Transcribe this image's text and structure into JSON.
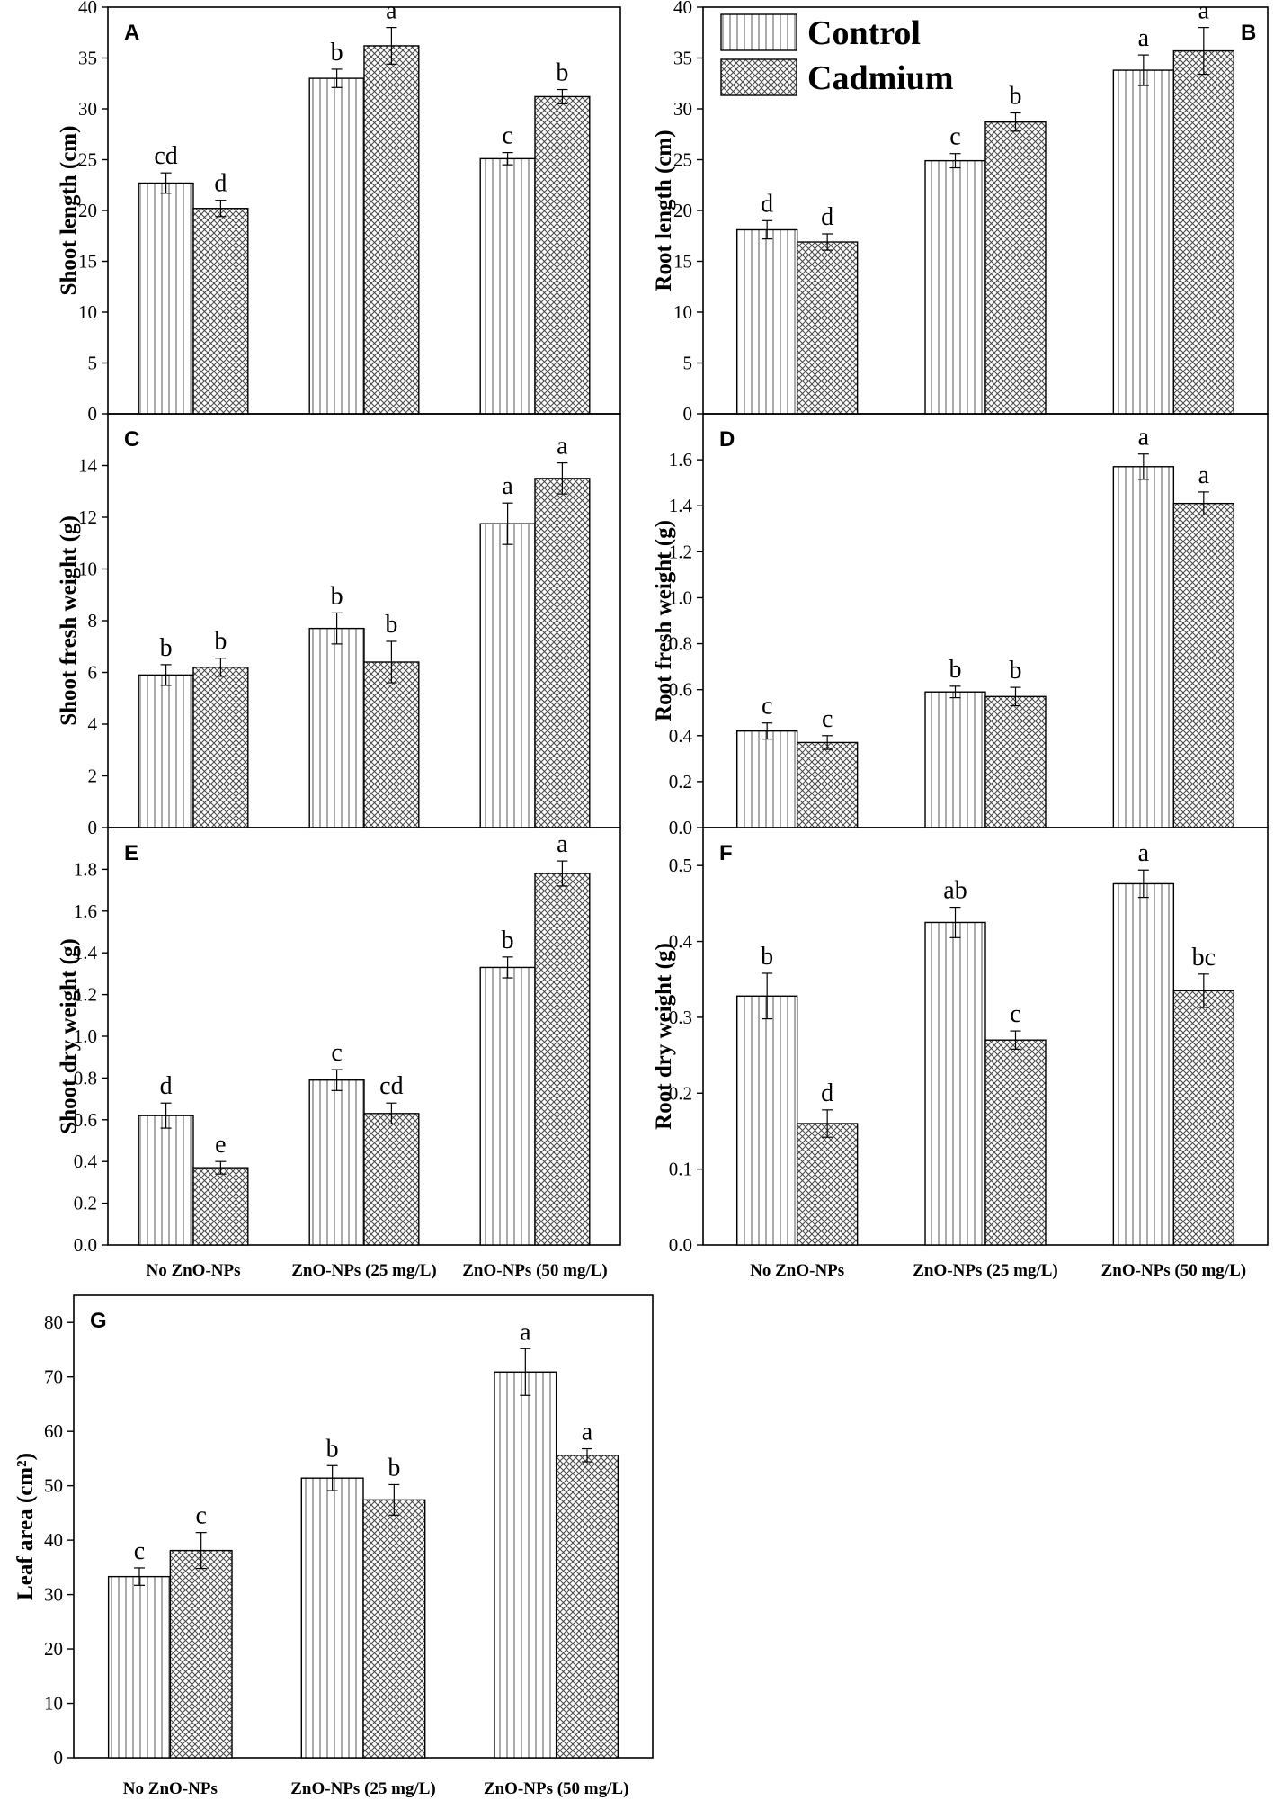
{
  "legend": {
    "series": [
      {
        "name": "Control",
        "pattern": "vertical-lines"
      },
      {
        "name": "Cadmium",
        "pattern": "crosshatch"
      }
    ]
  },
  "categories": [
    "No ZnO-NPs",
    "ZnO-NPs (25 mg/L)",
    "ZnO-NPs (50 mg/L)"
  ],
  "colors": {
    "bar_fill": "#ffffff",
    "line": "#000000",
    "pattern": "#555555"
  },
  "chart_data": [
    {
      "id": "A",
      "type": "bar",
      "letter": "A",
      "ylabel": "Shoot length (cm)",
      "ylim": [
        0,
        40
      ],
      "yticks": [
        "0",
        "5",
        "10",
        "15",
        "20",
        "25",
        "30",
        "35",
        "40"
      ],
      "categories": [
        "No ZnO-NPs",
        "ZnO-NPs (25 mg/L)",
        "ZnO-NPs (50 mg/L)"
      ],
      "series": [
        {
          "name": "Control",
          "values": [
            22.7,
            33.0,
            25.1
          ],
          "errors": [
            1.0,
            0.9,
            0.6
          ],
          "labels": [
            "cd",
            "b",
            "c"
          ]
        },
        {
          "name": "Cadmium",
          "values": [
            20.2,
            36.2,
            31.2
          ],
          "errors": [
            0.8,
            1.8,
            0.7
          ],
          "labels": [
            "d",
            "a",
            "b"
          ]
        }
      ]
    },
    {
      "id": "B",
      "type": "bar",
      "letter": "B",
      "ylabel": "Root length (cm)",
      "ylim": [
        0,
        40
      ],
      "yticks": [
        "0",
        "5",
        "10",
        "15",
        "20",
        "25",
        "30",
        "35",
        "40"
      ],
      "categories": [
        "No ZnO-NPs",
        "ZnO-NPs (25 mg/L)",
        "ZnO-NPs (50 mg/L)"
      ],
      "series": [
        {
          "name": "Control",
          "values": [
            18.1,
            24.9,
            33.8
          ],
          "errors": [
            0.9,
            0.7,
            1.5
          ],
          "labels": [
            "d",
            "c",
            "a"
          ]
        },
        {
          "name": "Cadmium",
          "values": [
            16.9,
            28.7,
            35.7
          ],
          "errors": [
            0.8,
            0.9,
            2.3
          ],
          "labels": [
            "d",
            "b",
            "a"
          ]
        }
      ]
    },
    {
      "id": "C",
      "type": "bar",
      "letter": "C",
      "ylabel": "Shoot fresh weight (g)",
      "ylim": [
        0,
        16
      ],
      "yticks": [
        "0",
        "2",
        "4",
        "6",
        "8",
        "10",
        "12",
        "14"
      ],
      "categories": [
        "No ZnO-NPs",
        "ZnO-NPs (25 mg/L)",
        "ZnO-NPs (50 mg/L)"
      ],
      "series": [
        {
          "name": "Control",
          "values": [
            5.9,
            7.7,
            11.75
          ],
          "errors": [
            0.4,
            0.6,
            0.8
          ],
          "labels": [
            "b",
            "b",
            "a"
          ]
        },
        {
          "name": "Cadmium",
          "values": [
            6.2,
            6.4,
            13.5
          ],
          "errors": [
            0.35,
            0.8,
            0.6
          ],
          "labels": [
            "b",
            "b",
            "a"
          ]
        }
      ]
    },
    {
      "id": "D",
      "type": "bar",
      "letter": "D",
      "ylabel": "Root fresh weight (g)",
      "ylim": [
        0,
        1.8
      ],
      "yticks": [
        "0.0",
        "0.2",
        "0.4",
        "0.6",
        "0.8",
        "1.0",
        "1.2",
        "1.4",
        "1.6"
      ],
      "categories": [
        "No ZnO-NPs",
        "ZnO-NPs (25 mg/L)",
        "ZnO-NPs (50 mg/L)"
      ],
      "series": [
        {
          "name": "Control",
          "values": [
            0.42,
            0.59,
            1.57
          ],
          "errors": [
            0.035,
            0.025,
            0.055
          ],
          "labels": [
            "c",
            "b",
            "a"
          ]
        },
        {
          "name": "Cadmium",
          "values": [
            0.37,
            0.57,
            1.41
          ],
          "errors": [
            0.03,
            0.04,
            0.05
          ],
          "labels": [
            "c",
            "b",
            "a"
          ]
        }
      ]
    },
    {
      "id": "E",
      "type": "bar",
      "letter": "E",
      "ylabel": "Shoot dry weight (g)",
      "ylim": [
        0,
        2.0
      ],
      "yticks": [
        "0.0",
        "0.2",
        "0.4",
        "0.6",
        "0.8",
        "1.0",
        "1.2",
        "1.4",
        "1.6",
        "1.8"
      ],
      "categories": [
        "No ZnO-NPs",
        "ZnO-NPs (25 mg/L)",
        "ZnO-NPs (50 mg/L)"
      ],
      "series": [
        {
          "name": "Control",
          "values": [
            0.62,
            0.79,
            1.33
          ],
          "errors": [
            0.06,
            0.05,
            0.05
          ],
          "labels": [
            "d",
            "c",
            "b"
          ]
        },
        {
          "name": "Cadmium",
          "values": [
            0.37,
            0.63,
            1.78
          ],
          "errors": [
            0.03,
            0.05,
            0.06
          ],
          "labels": [
            "e",
            "cd",
            "a"
          ]
        }
      ]
    },
    {
      "id": "F",
      "type": "bar",
      "letter": "F",
      "ylabel": "Root dry weight (g)",
      "ylim": [
        0,
        0.55
      ],
      "yticks": [
        "0.0",
        "0.1",
        "0.2",
        "0.3",
        "0.4",
        "0.5"
      ],
      "categories": [
        "No ZnO-NPs",
        "ZnO-NPs (25 mg/L)",
        "ZnO-NPs (50 mg/L)"
      ],
      "series": [
        {
          "name": "Control",
          "values": [
            0.328,
            0.425,
            0.476
          ],
          "errors": [
            0.03,
            0.02,
            0.018
          ],
          "labels": [
            "b",
            "ab",
            "a"
          ]
        },
        {
          "name": "Cadmium",
          "values": [
            0.16,
            0.27,
            0.335
          ],
          "errors": [
            0.018,
            0.012,
            0.022
          ],
          "labels": [
            "d",
            "c",
            "bc"
          ]
        }
      ]
    },
    {
      "id": "G",
      "type": "bar",
      "letter": "G",
      "ylabel": "Leaf area (cm²)",
      "ylim": [
        0,
        85
      ],
      "yticks": [
        "0",
        "10",
        "20",
        "30",
        "40",
        "50",
        "60",
        "70",
        "80"
      ],
      "categories": [
        "No ZnO-NPs",
        "ZnO-NPs (25 mg/L)",
        "ZnO-NPs (50 mg/L)"
      ],
      "series": [
        {
          "name": "Control",
          "values": [
            33.3,
            51.4,
            70.9
          ],
          "errors": [
            1.6,
            2.3,
            4.3
          ],
          "labels": [
            "c",
            "b",
            "a"
          ]
        },
        {
          "name": "Cadmium",
          "values": [
            38.1,
            47.4,
            55.6
          ],
          "errors": [
            3.3,
            2.8,
            1.2
          ],
          "labels": [
            "c",
            "b",
            "a"
          ]
        }
      ]
    }
  ]
}
